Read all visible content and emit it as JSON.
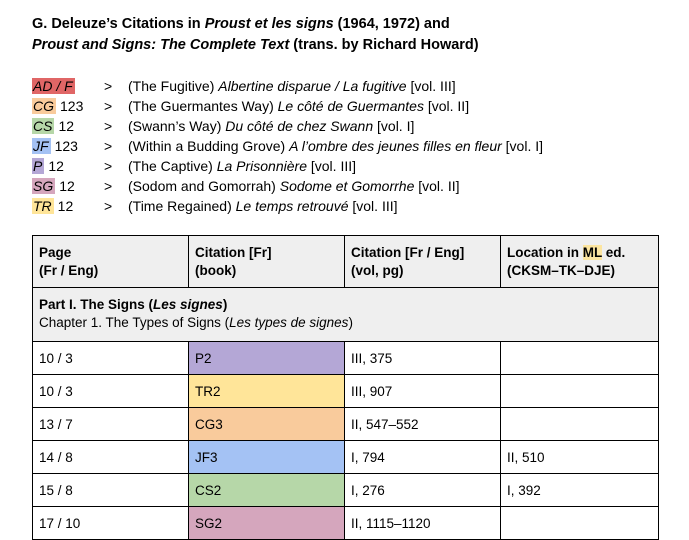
{
  "title": {
    "prefix": "G. Deleuze’s Citations in ",
    "book_fr": "Proust et les signs",
    "years": " (1964, 1972) and",
    "book_en": "Proust and Signs: The Complete Text",
    "suffix": " (trans. by Richard Howard)"
  },
  "legend": [
    {
      "abbr": "AD / F",
      "count": "",
      "color": "#e06666",
      "pre": "(The Fugitive) ",
      "fr": "Albertine disparue / La fugitive",
      "vol": " [vol. III]"
    },
    {
      "abbr": "CG",
      "count": "123",
      "color": "#f9cb9c",
      "pre": "(The Guermantes Way) ",
      "fr": "Le côté de Guermantes",
      "vol": " [vol. II]"
    },
    {
      "abbr": "CS",
      "count": "12",
      "color": "#b6d7a8",
      "pre": "(Swann’s Way) ",
      "fr": "Du côté de chez Swann",
      "vol": " [vol. I]"
    },
    {
      "abbr": "JF",
      "count": "123",
      "color": "#a4c2f4",
      "pre": "(Within a Budding Grove) ",
      "fr": "A l’ombre des jeunes filles en fleur",
      "vol": " [vol. I]"
    },
    {
      "abbr": "P",
      "count": "12",
      "color": "#b4a7d6",
      "pre": "(The Captive) ",
      "fr": "La Prisonnière",
      "vol": " [vol. III]"
    },
    {
      "abbr": "SG",
      "count": "12",
      "color": "#d5a6bd",
      "pre": "(Sodom and Gomorrah) ",
      "fr": "Sodome et Gomorrhe",
      "vol": " [vol. II]"
    },
    {
      "abbr": "TR",
      "count": "12",
      "color": "#ffe599",
      "pre": "(Time Regained) ",
      "fr": "Le temps retrouvé",
      "vol": " [vol. III]"
    }
  ],
  "legend_arrow": ">",
  "table": {
    "headers": {
      "page_1": "Page",
      "page_2": "(Fr / Eng)",
      "cit_fr_1": "Citation [Fr]",
      "cit_fr_2": "(book)",
      "cit_vol_1": "Citation [Fr / Eng]",
      "cit_vol_2": "(vol, pg)",
      "loc_pre": "Location in ",
      "loc_ml": "ML",
      "loc_post": " ed.",
      "loc_2": "(CKSM–TK–DJE)"
    },
    "part": {
      "title_pre": "Part I. The Signs (",
      "title_fr": "Les signes",
      "title_post": ")",
      "chapter_pre": "Chapter 1. The Types of Signs (",
      "chapter_fr": "Les types de signes",
      "chapter_post": ")"
    },
    "rows": [
      {
        "page": "10 / 3",
        "citation": "P2",
        "color": "#b4a7d6",
        "vol": "III, 375",
        "loc": ""
      },
      {
        "page": "10 / 3",
        "citation": "TR2",
        "color": "#ffe599",
        "vol": "III, 907",
        "loc": ""
      },
      {
        "page": "13 / 7",
        "citation": "CG3",
        "color": "#f9cb9c",
        "vol": "II, 547–552",
        "loc": ""
      },
      {
        "page": "14 / 8",
        "citation": "JF3",
        "color": "#a4c2f4",
        "vol": "I, 794",
        "loc": "II, 510"
      },
      {
        "page": "15 / 8",
        "citation": "CS2",
        "color": "#b6d7a8",
        "vol": "I, 276",
        "loc": "I, 392"
      },
      {
        "page": "17 / 10",
        "citation": "SG2",
        "color": "#d5a6bd",
        "vol": "II, 1115–1120",
        "loc": ""
      }
    ]
  }
}
